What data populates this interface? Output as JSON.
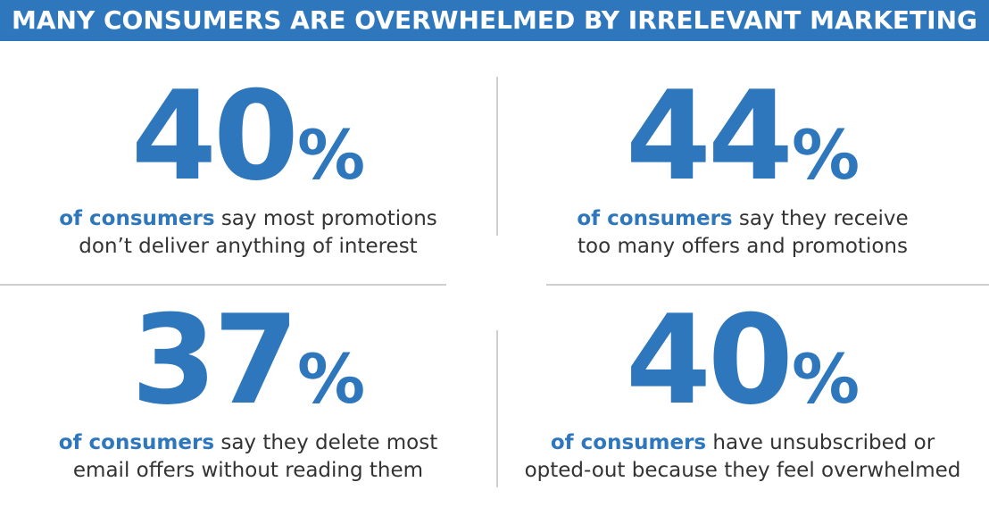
{
  "header": {
    "title": "MANY CONSUMERS ARE OVERWHELMED BY IRRELEVANT MARKETING"
  },
  "colors": {
    "accent": "#2e77bd",
    "text": "#333333",
    "divider": "#cfcfcf"
  },
  "stats": [
    {
      "number": "40",
      "percent": "%",
      "highlight": "of consumers",
      "line1_rest": " say most promotions",
      "line2": "don’t deliver anything of interest"
    },
    {
      "number": "44",
      "percent": "%",
      "highlight": "of consumers",
      "line1_rest": " say they receive",
      "line2": "too many offers and promotions"
    },
    {
      "number": "37",
      "percent": "%",
      "highlight": "of consumers",
      "line1_rest": " say they delete most",
      "line2": "email offers without reading them"
    },
    {
      "number": "40",
      "percent": "%",
      "highlight": "of consumers",
      "line1_rest": " have unsubscribed or",
      "line2": "opted-out because they feel overwhelmed"
    }
  ]
}
